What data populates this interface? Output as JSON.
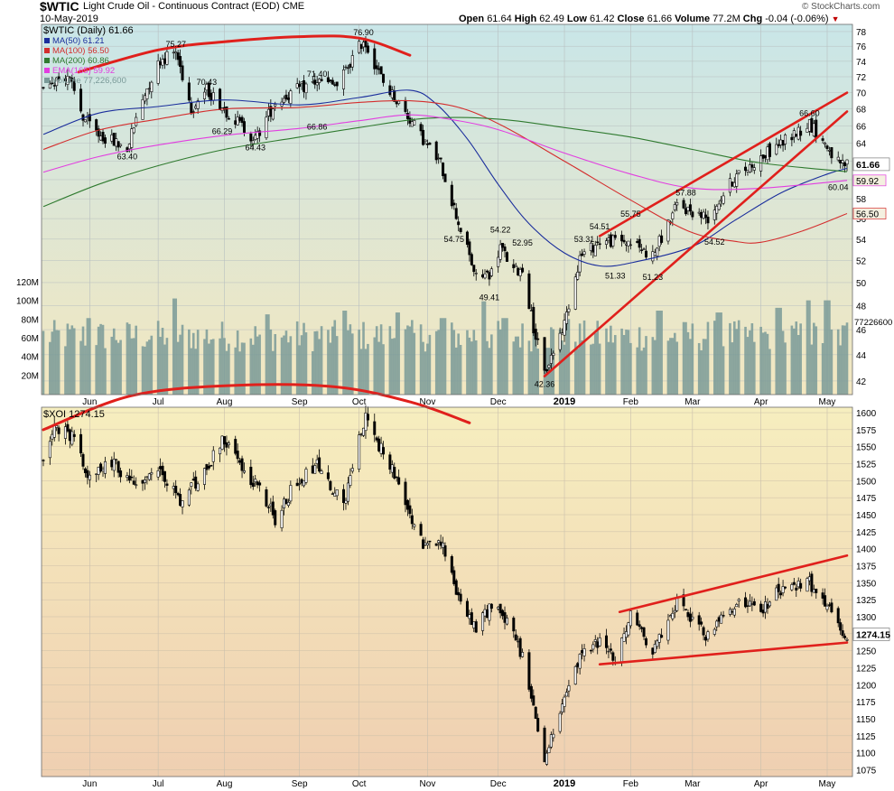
{
  "header": {
    "symbol": "$WTIC",
    "name": "Light Crude Oil - Continuous Contract (EOD) CME",
    "date": "10-May-2019",
    "copyright": "© StockCharts.com",
    "quote": {
      "open_label": "Open",
      "open": "61.64",
      "high_label": "High",
      "high": "62.49",
      "low_label": "Low",
      "low": "61.42",
      "close_label": "Close",
      "close": "61.66",
      "volume_label": "Volume",
      "volume": "77.2M",
      "chg_label": "Chg",
      "chg": "-0.04 (-0.06%)"
    }
  },
  "colors": {
    "candle_up": "#ffffff",
    "candle_down": "#000000",
    "ma50": "#1a2d9c",
    "ma100": "#d42d2d",
    "ma200": "#2f7a2f",
    "ema165": "#e23de0",
    "volume": "#7a9a98",
    "trendline": "#e0201c",
    "top_bg_top": "#c9e6e8",
    "top_bg_bottom": "#f3e7c0",
    "bottom_bg_top": "#f6eebf",
    "bottom_bg_bottom": "#efcfb1"
  },
  "legend_top": [
    {
      "key": "ma50",
      "text": "MA(50) 61.21"
    },
    {
      "key": "ma100",
      "text": "MA(100) 56.50"
    },
    {
      "key": "ma200",
      "text": "MA(200) 60.86"
    },
    {
      "key": "ema165",
      "text": "EMA(165) 59.92"
    },
    {
      "key": "volume",
      "text": "Volume 77,226,600"
    }
  ],
  "x_axis": {
    "months": [
      {
        "label": "Jun",
        "date": "2018-06-01"
      },
      {
        "label": "Jul",
        "date": "2018-07-02"
      },
      {
        "label": "Aug",
        "date": "2018-08-01"
      },
      {
        "label": "Sep",
        "date": "2018-09-04"
      },
      {
        "label": "Oct",
        "date": "2018-10-01"
      },
      {
        "label": "Nov",
        "date": "2018-11-01"
      },
      {
        "label": "Dec",
        "date": "2018-12-03"
      },
      {
        "label": "2019",
        "date": "2019-01-02",
        "bold": true
      },
      {
        "label": "Feb",
        "date": "2019-02-01"
      },
      {
        "label": "Mar",
        "date": "2019-03-01"
      },
      {
        "label": "Apr",
        "date": "2019-04-01"
      },
      {
        "label": "May",
        "date": "2019-05-01"
      }
    ],
    "range": [
      "2018-05-11",
      "2019-05-10"
    ]
  },
  "chart_data": [
    {
      "type": "candlestick",
      "title": "$WTIC (Daily) 61.66",
      "ylim": [
        41,
        79
      ],
      "yticks": [
        42,
        44,
        46,
        48,
        50,
        52,
        54,
        56,
        58,
        60,
        62,
        64,
        66,
        68,
        70,
        72,
        74,
        76,
        78
      ],
      "y_scale": "log",
      "last_value_label": "61.66",
      "side_labels": [
        {
          "text": "59.92",
          "value": 59.92,
          "series": "ema165"
        },
        {
          "text": "56.50",
          "value": 56.5,
          "series": "ma100"
        }
      ],
      "price_path": [
        [
          "2018-05-11",
          71.0
        ],
        [
          "2018-05-22",
          72.2
        ],
        [
          "2018-05-29",
          67.0
        ],
        [
          "2018-06-05",
          65.0
        ],
        [
          "2018-06-18",
          63.4
        ],
        [
          "2018-06-26",
          70.0
        ],
        [
          "2018-07-03",
          74.2
        ],
        [
          "2018-07-10",
          75.27
        ],
        [
          "2018-07-17",
          68.1
        ],
        [
          "2018-07-24",
          70.43
        ],
        [
          "2018-08-01",
          68.0
        ],
        [
          "2018-08-15",
          64.43
        ],
        [
          "2018-08-24",
          68.8
        ],
        [
          "2018-09-04",
          70.5
        ],
        [
          "2018-09-12",
          71.4
        ],
        [
          "2018-09-21",
          70.8
        ],
        [
          "2018-10-03",
          76.9
        ],
        [
          "2018-10-12",
          71.3
        ],
        [
          "2018-10-24",
          66.8
        ],
        [
          "2018-11-01",
          63.7
        ],
        [
          "2018-11-07",
          61.7
        ],
        [
          "2018-11-14",
          56.3
        ],
        [
          "2018-11-23",
          50.4
        ],
        [
          "2018-11-30",
          50.9
        ],
        [
          "2018-12-04",
          53.3
        ],
        [
          "2018-12-10",
          51.0
        ],
        [
          "2018-12-14",
          51.2
        ],
        [
          "2018-12-19",
          46.2
        ],
        [
          "2018-12-24",
          42.53
        ],
        [
          "2019-01-02",
          46.5
        ],
        [
          "2019-01-09",
          52.3
        ],
        [
          "2019-01-18",
          53.8
        ],
        [
          "2019-01-31",
          53.8
        ],
        [
          "2019-02-11",
          52.4
        ],
        [
          "2019-02-22",
          57.3
        ],
        [
          "2019-03-08",
          56.1
        ],
        [
          "2019-03-20",
          60.2
        ],
        [
          "2019-04-05",
          63.1
        ],
        [
          "2019-04-23",
          66.3
        ],
        [
          "2019-05-01",
          63.6
        ],
        [
          "2019-05-07",
          61.4
        ],
        [
          "2019-05-10",
          61.66
        ]
      ],
      "annotations": [
        {
          "text": "75.27",
          "date": "2018-07-10",
          "value": 75.27,
          "pos": "above"
        },
        {
          "text": "70.43",
          "date": "2018-07-24",
          "value": 70.43,
          "pos": "above"
        },
        {
          "text": "66.29",
          "date": "2018-07-31",
          "value": 66.29,
          "pos": "below"
        },
        {
          "text": "63.40",
          "date": "2018-06-18",
          "value": 63.4,
          "pos": "below"
        },
        {
          "text": "64.43",
          "date": "2018-08-15",
          "value": 64.43,
          "pos": "below"
        },
        {
          "text": "71.40",
          "date": "2018-09-12",
          "value": 71.4,
          "pos": "above"
        },
        {
          "text": "66.86",
          "date": "2018-09-12",
          "value": 66.86,
          "pos": "below"
        },
        {
          "text": "76.90",
          "date": "2018-10-03",
          "value": 76.9,
          "pos": "above"
        },
        {
          "text": "54.75",
          "date": "2018-11-13",
          "value": 54.75,
          "pos": "below"
        },
        {
          "text": "54.22",
          "date": "2018-12-04",
          "value": 54.22,
          "pos": "above"
        },
        {
          "text": "52.95",
          "date": "2018-12-14",
          "value": 52.95,
          "pos": "above"
        },
        {
          "text": "49.41",
          "date": "2018-11-29",
          "value": 49.41,
          "pos": "below"
        },
        {
          "text": "42.36",
          "date": "2018-12-24",
          "value": 42.36,
          "pos": "below"
        },
        {
          "text": "53.31",
          "date": "2019-01-11",
          "value": 53.31,
          "pos": "above"
        },
        {
          "text": "54.51",
          "date": "2019-01-18",
          "value": 54.51,
          "pos": "above"
        },
        {
          "text": "55.75",
          "date": "2019-02-01",
          "value": 55.75,
          "pos": "above"
        },
        {
          "text": "51.33",
          "date": "2019-01-25",
          "value": 51.33,
          "pos": "below"
        },
        {
          "text": "51.23",
          "date": "2019-02-11",
          "value": 51.23,
          "pos": "below"
        },
        {
          "text": "57.88",
          "date": "2019-02-26",
          "value": 57.88,
          "pos": "above"
        },
        {
          "text": "54.52",
          "date": "2019-03-11",
          "value": 54.52,
          "pos": "below"
        },
        {
          "text": "66.60",
          "date": "2019-04-23",
          "value": 66.6,
          "pos": "above"
        },
        {
          "text": "60.04",
          "date": "2019-05-06",
          "value": 60.04,
          "pos": "below"
        }
      ],
      "moving_averages": [
        {
          "key": "ma50",
          "points": [
            [
              "2018-05-11",
              65.0
            ],
            [
              "2018-06-05",
              67.5
            ],
            [
              "2018-07-02",
              68.3
            ],
            [
              "2018-08-01",
              69.1
            ],
            [
              "2018-09-04",
              68.5
            ],
            [
              "2018-10-01",
              69.4
            ],
            [
              "2018-10-24",
              70.3
            ],
            [
              "2018-11-05",
              68.6
            ],
            [
              "2018-11-19",
              64.5
            ],
            [
              "2018-12-03",
              59.5
            ],
            [
              "2018-12-17",
              55.5
            ],
            [
              "2019-01-02",
              52.7
            ],
            [
              "2019-01-18",
              51.5
            ],
            [
              "2019-02-04",
              51.9
            ],
            [
              "2019-03-01",
              53.3
            ],
            [
              "2019-03-20",
              55.8
            ],
            [
              "2019-04-10",
              58.6
            ],
            [
              "2019-05-01",
              60.6
            ],
            [
              "2019-05-10",
              61.21
            ]
          ]
        },
        {
          "key": "ma100",
          "points": [
            [
              "2018-05-11",
              63.3
            ],
            [
              "2018-06-05",
              65.5
            ],
            [
              "2018-07-02",
              66.8
            ],
            [
              "2018-08-01",
              68.0
            ],
            [
              "2018-09-04",
              68.2
            ],
            [
              "2018-10-01",
              68.8
            ],
            [
              "2018-10-24",
              69.0
            ],
            [
              "2018-11-15",
              68.2
            ],
            [
              "2018-12-05",
              66.0
            ],
            [
              "2019-01-02",
              62.0
            ],
            [
              "2019-01-31",
              58.0
            ],
            [
              "2019-02-28",
              54.7
            ],
            [
              "2019-03-20",
              53.8
            ],
            [
              "2019-04-01",
              53.7
            ],
            [
              "2019-04-20",
              54.8
            ],
            [
              "2019-05-10",
              56.5
            ]
          ]
        },
        {
          "key": "ma200",
          "points": [
            [
              "2018-05-11",
              57.2
            ],
            [
              "2018-06-05",
              59.5
            ],
            [
              "2018-07-02",
              61.5
            ],
            [
              "2018-08-01",
              63.3
            ],
            [
              "2018-09-04",
              64.7
            ],
            [
              "2018-10-01",
              65.8
            ],
            [
              "2018-11-01",
              66.9
            ],
            [
              "2018-12-03",
              66.8
            ],
            [
              "2019-01-02",
              65.8
            ],
            [
              "2019-02-01",
              64.7
            ],
            [
              "2019-03-01",
              63.3
            ],
            [
              "2019-04-01",
              61.8
            ],
            [
              "2019-05-10",
              60.86
            ]
          ]
        },
        {
          "key": "ema165",
          "points": [
            [
              "2018-05-11",
              60.8
            ],
            [
              "2018-06-05",
              62.5
            ],
            [
              "2018-07-02",
              63.8
            ],
            [
              "2018-08-01",
              64.9
            ],
            [
              "2018-09-04",
              65.7
            ],
            [
              "2018-10-01",
              66.6
            ],
            [
              "2018-10-24",
              67.3
            ],
            [
              "2018-11-15",
              66.6
            ],
            [
              "2018-12-05",
              65.4
            ],
            [
              "2019-01-02",
              62.9
            ],
            [
              "2019-02-01",
              60.6
            ],
            [
              "2019-03-01",
              59.1
            ],
            [
              "2019-04-01",
              59.1
            ],
            [
              "2019-05-10",
              59.92
            ]
          ]
        }
      ],
      "volume": {
        "ylim": [
          0,
          120
        ],
        "unit": "M",
        "ticks": [
          "120M",
          "100M",
          "80M",
          "60M",
          "40M",
          "20M"
        ],
        "tick_values": [
          120,
          100,
          80,
          60,
          40,
          20
        ],
        "last_label": "77226600",
        "last_value": 77.2,
        "avg_level": 63,
        "spikes": [
          [
            "2018-06-01",
            82
          ],
          [
            "2018-07-09",
            103
          ],
          [
            "2018-08-20",
            86
          ],
          [
            "2018-09-24",
            90
          ],
          [
            "2018-10-19",
            88
          ],
          [
            "2018-11-08",
            82
          ],
          [
            "2018-11-26",
            100
          ],
          [
            "2018-12-06",
            82
          ],
          [
            "2019-01-04",
            81
          ],
          [
            "2019-02-14",
            90
          ],
          [
            "2019-03-13",
            88
          ],
          [
            "2019-04-09",
            93
          ],
          [
            "2019-04-22",
            101
          ],
          [
            "2019-05-01",
            101
          ]
        ]
      },
      "trendlines": [
        {
          "points": [
            [
              "2018-05-27",
              72.6
            ],
            [
              "2018-07-02",
              75.5
            ],
            [
              "2018-08-01",
              76.6
            ],
            [
              "2018-09-04",
              77.3
            ],
            [
              "2018-10-01",
              77.1
            ],
            [
              "2018-10-24",
              74.8
            ]
          ],
          "curve": true
        },
        {
          "points": [
            [
              "2018-12-24",
              42.36
            ],
            [
              "2019-05-10",
              67.7
            ]
          ]
        },
        {
          "points": [
            [
              "2019-01-18",
              54.3
            ],
            [
              "2019-05-10",
              70.0
            ]
          ]
        }
      ]
    },
    {
      "type": "candlestick",
      "title": "$XOI 1274.15",
      "ylim": [
        1065,
        1608
      ],
      "yticks": [
        1075,
        1100,
        1125,
        1150,
        1175,
        1200,
        1225,
        1250,
        1275,
        1300,
        1325,
        1350,
        1375,
        1400,
        1425,
        1450,
        1475,
        1500,
        1525,
        1550,
        1575,
        1600
      ],
      "last_value_label": "1274.15",
      "price_path": [
        [
          "2018-05-11",
          1535
        ],
        [
          "2018-05-17",
          1580
        ],
        [
          "2018-05-25",
          1565
        ],
        [
          "2018-05-31",
          1505
        ],
        [
          "2018-06-12",
          1525
        ],
        [
          "2018-06-21",
          1495
        ],
        [
          "2018-07-02",
          1510
        ],
        [
          "2018-07-13",
          1470
        ],
        [
          "2018-07-24",
          1520
        ],
        [
          "2018-08-01",
          1560
        ],
        [
          "2018-08-15",
          1495
        ],
        [
          "2018-08-24",
          1445
        ],
        [
          "2018-09-04",
          1505
        ],
        [
          "2018-09-12",
          1520
        ],
        [
          "2018-09-24",
          1465
        ],
        [
          "2018-10-01",
          1570
        ],
        [
          "2018-10-04",
          1590
        ],
        [
          "2018-10-11",
          1545
        ],
        [
          "2018-10-19",
          1500
        ],
        [
          "2018-10-29",
          1410
        ],
        [
          "2018-11-08",
          1400
        ],
        [
          "2018-11-14",
          1340
        ],
        [
          "2018-11-23",
          1285
        ],
        [
          "2018-11-30",
          1315
        ],
        [
          "2018-12-04",
          1310
        ],
        [
          "2018-12-10",
          1275
        ],
        [
          "2018-12-14",
          1240
        ],
        [
          "2018-12-24",
          1090
        ],
        [
          "2019-01-02",
          1180
        ],
        [
          "2019-01-09",
          1240
        ],
        [
          "2019-01-18",
          1265
        ],
        [
          "2019-01-25",
          1235
        ],
        [
          "2019-02-01",
          1300
        ],
        [
          "2019-02-11",
          1250
        ],
        [
          "2019-02-22",
          1320
        ],
        [
          "2019-03-08",
          1270
        ],
        [
          "2019-03-20",
          1320
        ],
        [
          "2019-04-01",
          1310
        ],
        [
          "2019-04-10",
          1340
        ],
        [
          "2019-04-22",
          1355
        ],
        [
          "2019-05-01",
          1315
        ],
        [
          "2019-05-07",
          1280
        ],
        [
          "2019-05-10",
          1274.15
        ]
      ],
      "trendlines": [
        {
          "points": [
            [
              "2018-05-11",
              1575
            ],
            [
              "2018-06-20",
              1625
            ],
            [
              "2018-08-05",
              1640
            ],
            [
              "2018-09-20",
              1638
            ],
            [
              "2018-10-25",
              1615
            ],
            [
              "2018-11-20",
              1585
            ]
          ],
          "curve": true
        },
        {
          "points": [
            [
              "2019-01-27",
              1307
            ],
            [
              "2019-05-10",
              1390
            ]
          ]
        },
        {
          "points": [
            [
              "2019-01-18",
              1230
            ],
            [
              "2019-05-10",
              1262
            ]
          ]
        }
      ]
    }
  ]
}
